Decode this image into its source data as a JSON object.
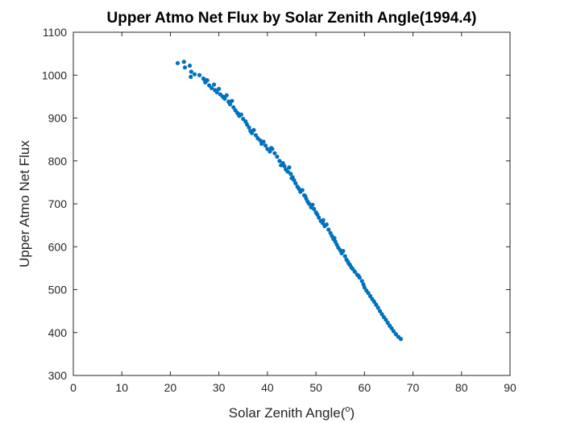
{
  "chart_data": {
    "type": "scatter",
    "title": "Upper Atmo Net Flux by Solar Zenith Angle(1994.4)",
    "xlabel": "Solar Zenith Angle(",
    "xlabel_superscript": "o",
    "xlabel_suffix": ")",
    "ylabel": "Upper Atmo Net Flux",
    "xlim": [
      0,
      90
    ],
    "ylim": [
      300,
      1100
    ],
    "xticks": [
      0,
      10,
      20,
      30,
      40,
      50,
      60,
      70,
      80,
      90
    ],
    "yticks": [
      300,
      400,
      500,
      600,
      700,
      800,
      900,
      1000,
      1100
    ],
    "grid": false,
    "marker_color": "#0072BD",
    "axis_color": "#262626",
    "series": [
      {
        "points": [
          [
            21.5,
            1028
          ],
          [
            22.8,
            1031
          ],
          [
            23.0,
            1018
          ],
          [
            24.0,
            1022
          ],
          [
            24.3,
            1008
          ],
          [
            24.2,
            996
          ],
          [
            25.0,
            1002
          ],
          [
            26.0,
            1000
          ],
          [
            26.8,
            992
          ],
          [
            27.2,
            983
          ],
          [
            27.6,
            988
          ],
          [
            28.0,
            976
          ],
          [
            28.5,
            970
          ],
          [
            29.0,
            978
          ],
          [
            29.2,
            965
          ],
          [
            29.6,
            960
          ],
          [
            30.0,
            968
          ],
          [
            30.3,
            955
          ],
          [
            30.8,
            950
          ],
          [
            31.2,
            945
          ],
          [
            31.6,
            953
          ],
          [
            32.0,
            938
          ],
          [
            32.3,
            932
          ],
          [
            32.7,
            940
          ],
          [
            33.0,
            925
          ],
          [
            33.4,
            918
          ],
          [
            33.8,
            912
          ],
          [
            34.2,
            905
          ],
          [
            34.6,
            908
          ],
          [
            35.0,
            898
          ],
          [
            35.5,
            892
          ],
          [
            35.8,
            885
          ],
          [
            36.2,
            878
          ],
          [
            36.5,
            870
          ],
          [
            36.8,
            865
          ],
          [
            37.2,
            872
          ],
          [
            37.6,
            860
          ],
          [
            38.0,
            853
          ],
          [
            38.5,
            848
          ],
          [
            38.8,
            840
          ],
          [
            39.2,
            845
          ],
          [
            39.6,
            836
          ],
          [
            40.0,
            828
          ],
          [
            40.5,
            822
          ],
          [
            41.0,
            828
          ],
          [
            41.5,
            818
          ],
          [
            42.0,
            810
          ],
          [
            42.5,
            800
          ],
          [
            42.8,
            790
          ],
          [
            43.2,
            795
          ],
          [
            43.5,
            788
          ],
          [
            43.8,
            780
          ],
          [
            44.2,
            775
          ],
          [
            44.5,
            785
          ],
          [
            44.8,
            770
          ],
          [
            45.2,
            762
          ],
          [
            45.5,
            755
          ],
          [
            45.8,
            748
          ],
          [
            46.2,
            740
          ],
          [
            46.5,
            735
          ],
          [
            46.8,
            728
          ],
          [
            47.2,
            732
          ],
          [
            47.6,
            720
          ],
          [
            48.0,
            712
          ],
          [
            48.3,
            705
          ],
          [
            48.6,
            700
          ],
          [
            49.0,
            692
          ],
          [
            49.3,
            698
          ],
          [
            49.6,
            688
          ],
          [
            50.0,
            680
          ],
          [
            50.3,
            675
          ],
          [
            50.6,
            668
          ],
          [
            51.0,
            660
          ],
          [
            51.4,
            655
          ],
          [
            51.8,
            648
          ],
          [
            52.2,
            652
          ],
          [
            52.6,
            640
          ],
          [
            53.0,
            632
          ],
          [
            53.3,
            625
          ],
          [
            53.6,
            618
          ],
          [
            54.0,
            612
          ],
          [
            54.3,
            605
          ],
          [
            54.6,
            598
          ],
          [
            55.0,
            592
          ],
          [
            55.3,
            585
          ],
          [
            55.6,
            590
          ],
          [
            56.0,
            578
          ],
          [
            56.3,
            570
          ],
          [
            56.6,
            565
          ],
          [
            57.0,
            558
          ],
          [
            57.3,
            552
          ],
          [
            57.6,
            548
          ],
          [
            58.0,
            542
          ],
          [
            58.5,
            535
          ],
          [
            59.0,
            528
          ],
          [
            59.5,
            520
          ],
          [
            59.8,
            512
          ],
          [
            60.0,
            505
          ],
          [
            60.4,
            498
          ],
          [
            60.8,
            492
          ],
          [
            61.2,
            485
          ],
          [
            61.6,
            478
          ],
          [
            62.0,
            472
          ],
          [
            62.4,
            465
          ],
          [
            62.8,
            458
          ],
          [
            63.2,
            450
          ],
          [
            63.6,
            443
          ],
          [
            64.0,
            436
          ],
          [
            64.4,
            430
          ],
          [
            64.8,
            423
          ],
          [
            65.2,
            416
          ],
          [
            65.6,
            410
          ],
          [
            66.0,
            403
          ],
          [
            66.5,
            396
          ],
          [
            67.0,
            390
          ],
          [
            67.5,
            385
          ],
          [
            51.5,
            662
          ],
          [
            53.8,
            620
          ],
          [
            56.8,
            560
          ],
          [
            58.8,
            532
          ],
          [
            47.8,
            718
          ],
          [
            45.0,
            760
          ],
          [
            40.8,
            830
          ],
          [
            34.0,
            910
          ],
          [
            31.0,
            948
          ],
          [
            27.0,
            990
          ]
        ]
      }
    ]
  }
}
